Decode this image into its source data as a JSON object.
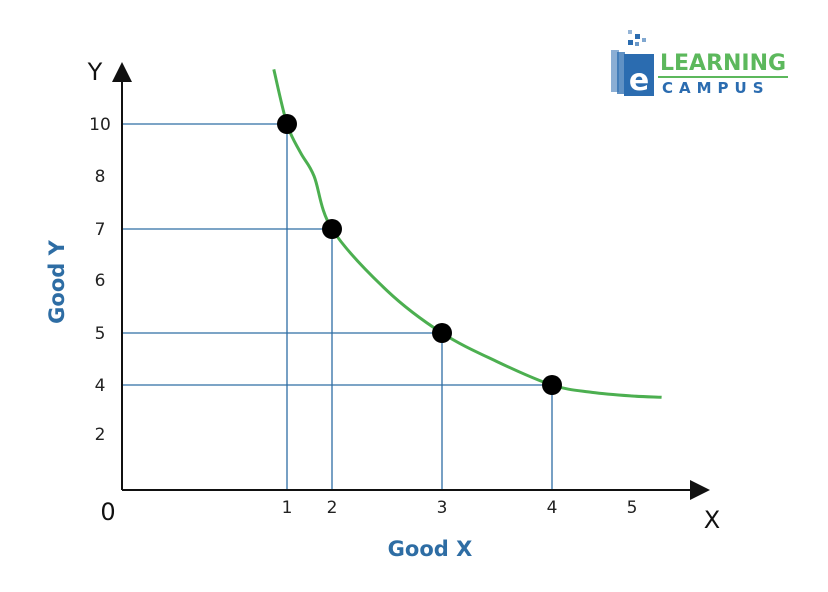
{
  "chart_data": {
    "type": "line",
    "xlabel": "Good X",
    "ylabel": "Good Y",
    "x_axis_letter": "X",
    "y_axis_letter": "Y",
    "origin_label": "0",
    "x_ticks": [
      1,
      2,
      3,
      4,
      5
    ],
    "y_ticks": [
      2,
      4,
      5,
      6,
      7,
      8,
      10
    ],
    "xlim": [
      0,
      5.5
    ],
    "ylim": [
      0,
      11
    ],
    "grid": false,
    "points": [
      {
        "x": 1,
        "y": 10
      },
      {
        "x": 2,
        "y": 7
      },
      {
        "x": 3,
        "y": 5
      },
      {
        "x": 4,
        "y": 4
      }
    ],
    "curve": [
      {
        "x": 0.92,
        "y": 12.1
      },
      {
        "x": 1,
        "y": 10
      },
      {
        "x": 1.3,
        "y": 8.9
      },
      {
        "x": 1.6,
        "y": 8.0
      },
      {
        "x": 2,
        "y": 7
      },
      {
        "x": 2.5,
        "y": 5.8
      },
      {
        "x": 3,
        "y": 5
      },
      {
        "x": 3.5,
        "y": 4.45
      },
      {
        "x": 4,
        "y": 4
      },
      {
        "x": 4.5,
        "y": 3.7
      },
      {
        "x": 5.0,
        "y": 3.55
      },
      {
        "x": 5.37,
        "y": 3.5
      }
    ],
    "colors": {
      "curve": "#4caf50",
      "guides": "#2e6da4",
      "axis_title": "#2e6da4",
      "points": "#000000"
    }
  },
  "logo": {
    "line1": "LEARNING",
    "line2": "CAMPUS",
    "letter": "e",
    "colors": {
      "green": "#5cb85c",
      "blue": "#2b6cb0"
    }
  }
}
